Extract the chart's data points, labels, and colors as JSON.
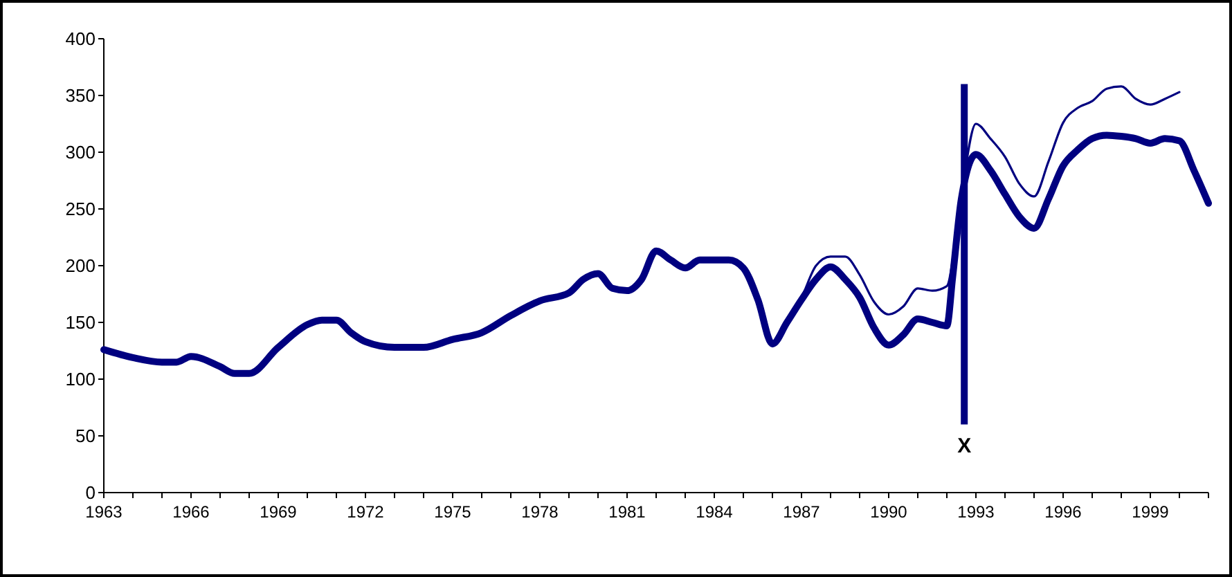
{
  "chart_data": {
    "type": "line",
    "xlim": [
      1963,
      2001
    ],
    "ylim": [
      0,
      400
    ],
    "yticks": [
      0,
      50,
      100,
      150,
      200,
      250,
      300,
      350,
      400
    ],
    "xticks": [
      1963,
      {
        "value": 1964,
        "label": null
      },
      {
        "value": 1965,
        "label": null
      },
      1966,
      {
        "value": 1967,
        "label": null
      },
      {
        "value": 1968,
        "label": null
      },
      1969,
      {
        "value": 1970,
        "label": null
      },
      {
        "value": 1971,
        "label": null
      },
      1972,
      {
        "value": 1973,
        "label": null
      },
      {
        "value": 1974,
        "label": null
      },
      1975,
      {
        "value": 1976,
        "label": null
      },
      {
        "value": 1977,
        "label": null
      },
      1978,
      {
        "value": 1979,
        "label": null
      },
      {
        "value": 1980,
        "label": null
      },
      1981,
      {
        "value": 1982,
        "label": null
      },
      {
        "value": 1983,
        "label": null
      },
      1984,
      {
        "value": 1985,
        "label": null
      },
      {
        "value": 1986,
        "label": null
      },
      1987,
      {
        "value": 1988,
        "label": null
      },
      {
        "value": 1989,
        "label": null
      },
      1990,
      {
        "value": 1991,
        "label": null
      },
      {
        "value": 1992,
        "label": null
      },
      1993,
      {
        "value": 1994,
        "label": null
      },
      {
        "value": 1995,
        "label": null
      },
      1996,
      {
        "value": 1997,
        "label": null
      },
      {
        "value": 1998,
        "label": null
      },
      1999,
      {
        "value": 2000,
        "label": null
      },
      {
        "value": 2001,
        "label": null
      }
    ],
    "grid": false,
    "marker": "none",
    "line_style": "solid",
    "series": [
      {
        "color": "#000080",
        "x": [
          1963,
          1964,
          1965,
          1965.5,
          1966,
          1967,
          1967.5,
          1968,
          1969,
          1970,
          1970.5,
          1971,
          1971.5,
          1972,
          1973,
          1974,
          1975,
          1976,
          1977,
          1978,
          1979,
          1979.5,
          1980,
          1980.5,
          1981,
          1981.5,
          1982,
          1982.5,
          1983,
          1983.5,
          1984,
          1984.5,
          1985,
          1985.5,
          1986,
          1986.5,
          1987,
          1987.5,
          1988,
          1988.5,
          1989,
          1989.5,
          1990,
          1990.5,
          1991,
          1991.5,
          1992,
          1992.2,
          1992.5,
          1993,
          1993.5,
          1994,
          1994.5,
          1995,
          1995.5,
          1996,
          1996.5,
          1997,
          1997.5,
          1998,
          1998.5,
          1999,
          1999.5,
          2000,
          2000.5,
          2001
        ],
        "values": [
          126,
          119,
          115,
          115,
          120,
          111,
          105,
          105,
          128,
          148,
          152,
          152,
          141,
          133,
          128,
          128,
          135,
          141,
          156,
          169,
          176,
          188,
          193,
          180,
          178,
          188,
          213,
          205,
          198,
          205,
          205,
          205,
          198,
          170,
          131,
          150,
          170,
          188,
          199,
          188,
          172,
          145,
          130,
          139,
          153,
          150,
          147,
          190,
          259,
          298,
          284,
          263,
          243,
          233,
          259,
          288,
          302,
          312,
          315,
          314,
          312,
          308,
          312,
          310,
          284,
          255
        ]
      },
      {
        "color": "#000080",
        "x": [
          1986,
          1986.5,
          1987,
          1987.5,
          1988,
          1988.5,
          1989,
          1989.5,
          1990,
          1990.5,
          1991,
          1991.5,
          1992,
          1992.5,
          1993,
          1993.5,
          1994,
          1994.5,
          1995,
          1995.5,
          1996,
          1996.5,
          1997,
          1997.5,
          1998,
          1998.5,
          1999,
          1999.5,
          2000
        ],
        "values": [
          131,
          152,
          172,
          200,
          208,
          208,
          192,
          168,
          157,
          164,
          180,
          178,
          182,
          263,
          325,
          312,
          296,
          272,
          261,
          292,
          326,
          339,
          345,
          356,
          358,
          347,
          342,
          347,
          353
        ]
      }
    ],
    "ref_lines": [
      {
        "axis": "x",
        "value": 1992.6,
        "label": "X",
        "color": "#000080"
      }
    ]
  }
}
